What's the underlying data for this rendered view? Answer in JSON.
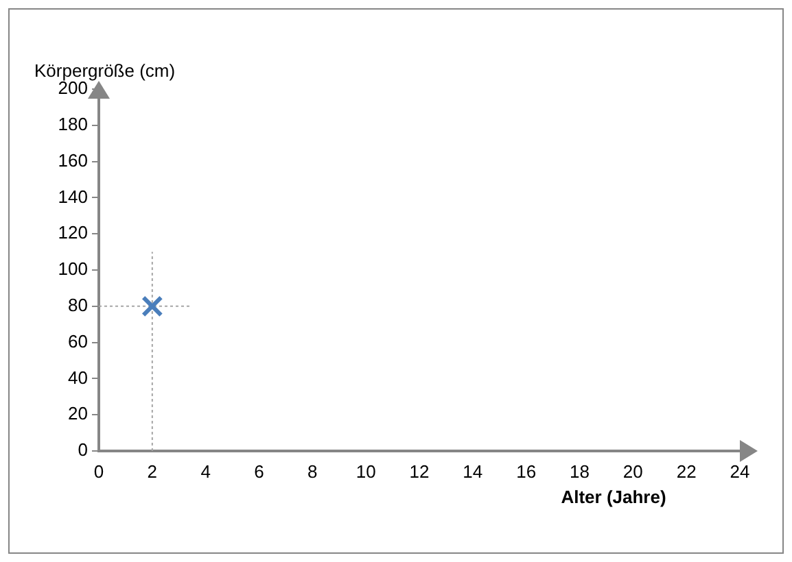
{
  "chart_data": {
    "type": "scatter",
    "xlabel": "Alter (Jahre)",
    "ylabel": "Körpergröße (cm)",
    "x": [
      2
    ],
    "values": [
      80
    ],
    "color": "#4a7ebb",
    "marker": "cross",
    "errors": [
      [
        0,
        110
      ]
    ],
    "xerrors": [
      [
        0,
        3.4
      ]
    ],
    "xlim": [
      0,
      24
    ],
    "ylim": [
      0,
      200
    ],
    "xticks": [
      0,
      2,
      4,
      6,
      8,
      10,
      12,
      14,
      16,
      18,
      20,
      22,
      24
    ],
    "yticks": [
      0,
      20,
      40,
      60,
      80,
      100,
      120,
      140,
      160,
      180,
      200
    ],
    "grid": false
  }
}
